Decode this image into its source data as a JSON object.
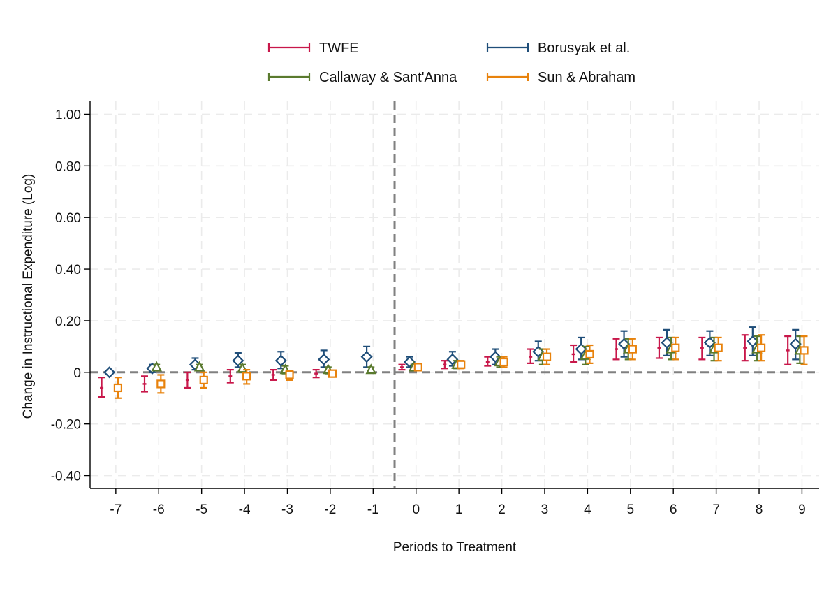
{
  "chart_data": {
    "type": "scatter",
    "title": "",
    "xlabel": "Periods to Treatment",
    "ylabel": "Change in Instructional Expenditure (Log)",
    "x": [
      -7,
      -6,
      -5,
      -4,
      -3,
      -2,
      -1,
      0,
      1,
      2,
      3,
      4,
      5,
      6,
      7,
      8,
      9
    ],
    "xlim": [
      -7.6,
      9.4
    ],
    "ylim": [
      -0.45,
      1.05
    ],
    "yticks": [
      1.0,
      0.8,
      0.6,
      0.4,
      0.2,
      0,
      -0.2,
      -0.4
    ],
    "ytick_labels": [
      "1.00",
      "0.80",
      "0.60",
      "0.40",
      "0.20",
      "0",
      "-0.20",
      "-0.40"
    ],
    "xtick_labels": [
      "-7",
      "-6",
      "-5",
      "-4",
      "-3",
      "-2",
      "-1",
      "0",
      "1",
      "2",
      "3",
      "4",
      "5",
      "6",
      "7",
      "8",
      "9"
    ],
    "grid": true,
    "legend_position": "top",
    "reference_lines": {
      "y": 0,
      "x": -0.5
    },
    "series": [
      {
        "name": "TWFE",
        "color": "#c8174a",
        "marker": "none",
        "offset": -0.33,
        "x": [
          -7,
          -6,
          -5,
          -4,
          -3,
          -2,
          0,
          1,
          2,
          3,
          4,
          5,
          6,
          7,
          8,
          9
        ],
        "y": [
          -0.06,
          -0.045,
          -0.03,
          -0.015,
          -0.01,
          -0.005,
          0.02,
          0.03,
          0.04,
          0.06,
          0.07,
          0.09,
          0.095,
          0.095,
          0.095,
          0.085
        ],
        "lo": [
          -0.095,
          -0.075,
          -0.06,
          -0.04,
          -0.03,
          -0.02,
          0.01,
          0.015,
          0.025,
          0.035,
          0.04,
          0.05,
          0.055,
          0.05,
          0.045,
          0.03
        ],
        "hi": [
          -0.02,
          -0.015,
          0.0,
          0.01,
          0.01,
          0.01,
          0.03,
          0.045,
          0.06,
          0.09,
          0.105,
          0.13,
          0.135,
          0.135,
          0.145,
          0.14
        ]
      },
      {
        "name": "Borusyak et al.",
        "color": "#1f4e79",
        "marker": "diamond",
        "offset": -0.15,
        "x": [
          -7,
          -6,
          -5,
          -4,
          -3,
          -2,
          -1,
          0,
          1,
          2,
          3,
          4,
          5,
          6,
          7,
          8,
          9
        ],
        "y": [
          0.0,
          0.015,
          0.03,
          0.045,
          0.045,
          0.05,
          0.06,
          0.04,
          0.05,
          0.06,
          0.08,
          0.09,
          0.11,
          0.115,
          0.115,
          0.12,
          0.11
        ],
        "lo": [
          null,
          0.0,
          0.01,
          0.02,
          0.015,
          0.02,
          0.02,
          0.02,
          0.025,
          0.03,
          0.045,
          0.05,
          0.06,
          0.065,
          0.065,
          0.065,
          0.05
        ],
        "hi": [
          null,
          0.03,
          0.055,
          0.075,
          0.08,
          0.085,
          0.1,
          0.06,
          0.08,
          0.09,
          0.12,
          0.135,
          0.16,
          0.165,
          0.16,
          0.175,
          0.165
        ]
      },
      {
        "name": "Callaway & Sant'Anna",
        "color": "#5a7a2e",
        "marker": "triangle",
        "offset": -0.05,
        "x": [
          -6,
          -5,
          -4,
          -3,
          -2,
          -1,
          0,
          1,
          2,
          3,
          4,
          5,
          6,
          7,
          8,
          9
        ],
        "y": [
          0.02,
          0.02,
          0.015,
          0.01,
          0.01,
          0.01,
          0.02,
          0.03,
          0.04,
          0.06,
          0.065,
          0.09,
          0.09,
          0.09,
          0.09,
          0.085
        ],
        "lo": [
          0.01,
          0.01,
          0.0,
          -0.005,
          -0.005,
          0.0,
          0.01,
          0.015,
          0.02,
          0.03,
          0.03,
          0.05,
          0.05,
          0.045,
          0.045,
          0.035
        ],
        "hi": [
          0.03,
          0.03,
          0.03,
          0.025,
          0.02,
          0.02,
          0.03,
          0.045,
          0.06,
          0.09,
          0.1,
          0.13,
          0.135,
          0.135,
          0.14,
          0.14
        ]
      },
      {
        "name": "Sun & Abraham",
        "color": "#e8820c",
        "marker": "square",
        "offset": 0.05,
        "x": [
          -7,
          -6,
          -5,
          -4,
          -3,
          -2,
          0,
          1,
          2,
          3,
          4,
          5,
          6,
          7,
          8,
          9
        ],
        "y": [
          -0.06,
          -0.045,
          -0.03,
          -0.015,
          -0.01,
          -0.005,
          0.02,
          0.03,
          0.04,
          0.06,
          0.07,
          0.09,
          0.095,
          0.095,
          0.095,
          0.085
        ],
        "lo": [
          -0.1,
          -0.08,
          -0.06,
          -0.045,
          -0.03,
          -0.015,
          0.01,
          0.015,
          0.02,
          0.03,
          0.035,
          0.05,
          0.05,
          0.045,
          0.045,
          0.03
        ],
        "hi": [
          -0.02,
          -0.01,
          0.0,
          0.01,
          0.005,
          0.005,
          0.03,
          0.045,
          0.06,
          0.09,
          0.105,
          0.13,
          0.135,
          0.135,
          0.145,
          0.14
        ]
      }
    ]
  }
}
